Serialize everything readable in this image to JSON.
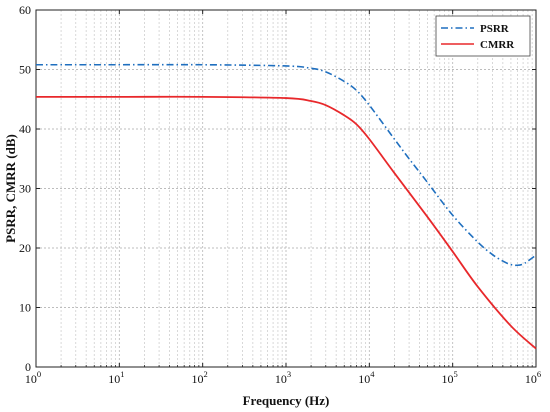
{
  "chart_data": {
    "type": "line",
    "xlabel": "Frequency (Hz)",
    "ylabel": "PSRR, CMRR (dB)",
    "xscale": "log",
    "xlim": [
      1,
      1000000
    ],
    "ylim": [
      0,
      60
    ],
    "x_ticks": [
      {
        "base": "10",
        "exp": "0"
      },
      {
        "base": "10",
        "exp": "1"
      },
      {
        "base": "10",
        "exp": "2"
      },
      {
        "base": "10",
        "exp": "3"
      },
      {
        "base": "10",
        "exp": "4"
      },
      {
        "base": "10",
        "exp": "5"
      },
      {
        "base": "10",
        "exp": "6"
      }
    ],
    "y_ticks": [
      "0",
      "10",
      "20",
      "30",
      "40",
      "50",
      "60"
    ],
    "grid": true,
    "legend_position": "top-right",
    "series": [
      {
        "name": "PSRR",
        "color": "#1f6fbf",
        "style": "dash-dot",
        "x": [
          1,
          10,
          100,
          1000,
          2000,
          3000,
          5000,
          7000,
          10000,
          20000,
          30000,
          50000,
          100000,
          200000,
          300000,
          400000,
          500000,
          600000,
          700000,
          800000,
          1000000
        ],
        "y": [
          50.8,
          50.8,
          50.8,
          50.6,
          50.2,
          49.6,
          48.0,
          46.5,
          44.0,
          38.3,
          35.0,
          31.0,
          25.5,
          21.0,
          18.9,
          17.8,
          17.2,
          17.1,
          17.3,
          17.8,
          18.8
        ]
      },
      {
        "name": "CMRR",
        "color": "#e8282b",
        "style": "solid",
        "x": [
          1,
          10,
          100,
          1000,
          2000,
          3000,
          5000,
          7000,
          10000,
          20000,
          50000,
          100000,
          200000,
          500000,
          1000000
        ],
        "y": [
          45.4,
          45.4,
          45.4,
          45.2,
          44.7,
          44.0,
          42.3,
          40.8,
          38.3,
          32.6,
          25.2,
          19.4,
          13.5,
          6.9,
          3.1
        ]
      }
    ]
  }
}
